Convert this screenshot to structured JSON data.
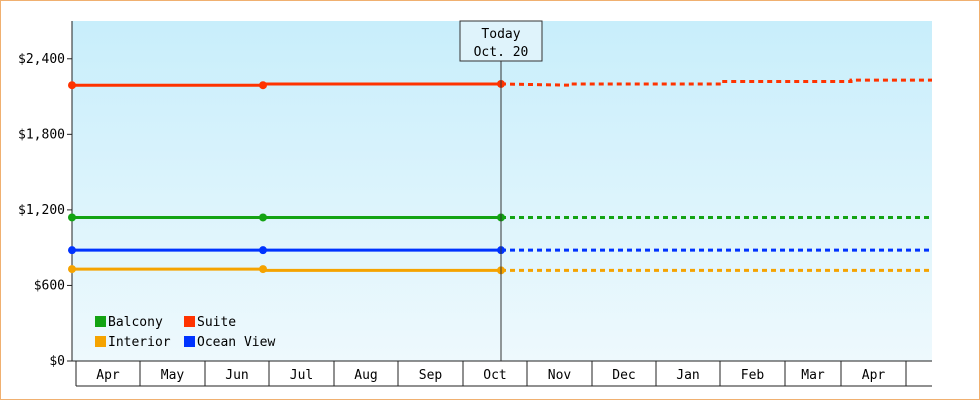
{
  "chart_data": {
    "type": "line",
    "title": "",
    "xlabel": "",
    "ylabel": "",
    "categories": [
      "Apr",
      "May",
      "Jun",
      "Jul",
      "Aug",
      "Sep",
      "Oct",
      "Nov",
      "Dec",
      "Jan",
      "Feb",
      "Mar",
      "Apr"
    ],
    "ylim": [
      0,
      2700
    ],
    "y_ticks": [
      0,
      600,
      1200,
      1800,
      2400
    ],
    "y_tick_labels": [
      "$0",
      "$600",
      "$1,200",
      "$1,800",
      "$2,400"
    ],
    "grid": false,
    "legend_position": "bottom-left",
    "today_marker": {
      "line1": "Today",
      "line2": "Oct. 20",
      "x": "Oct"
    },
    "series": [
      {
        "name": "Balcony",
        "color": "#13a313",
        "actual": [
          [
            "Apr",
            1140
          ],
          [
            "Jun",
            1140
          ],
          [
            "Oct",
            1140
          ]
        ],
        "forecast": [
          [
            "Oct",
            1140
          ],
          [
            "Apr",
            1140
          ]
        ]
      },
      {
        "name": "Suite",
        "color": "#ff3300",
        "actual": [
          [
            "Apr",
            2190
          ],
          [
            "Jun",
            2190
          ],
          [
            "Jun",
            2200
          ],
          [
            "Oct",
            2200
          ]
        ],
        "forecast": [
          [
            "Oct",
            2200
          ],
          [
            "Nov",
            2190
          ],
          [
            "Nov",
            2200
          ],
          [
            "Jan",
            2200
          ],
          [
            "Jan",
            2220
          ],
          [
            "Mar",
            2220
          ],
          [
            "Mar",
            2230
          ],
          [
            "Apr",
            2230
          ]
        ]
      },
      {
        "name": "Interior",
        "color": "#f5a300",
        "actual": [
          [
            "Apr",
            730
          ],
          [
            "Jun",
            730
          ],
          [
            "Jun",
            720
          ],
          [
            "Oct",
            720
          ]
        ],
        "forecast": [
          [
            "Oct",
            720
          ],
          [
            "Apr",
            720
          ]
        ]
      },
      {
        "name": "Ocean View",
        "color": "#0033ff",
        "actual": [
          [
            "Apr",
            880
          ],
          [
            "Jun",
            880
          ],
          [
            "Oct",
            880
          ]
        ],
        "forecast": [
          [
            "Oct",
            880
          ],
          [
            "Apr",
            880
          ]
        ]
      }
    ],
    "legend_order": [
      "Balcony",
      "Suite",
      "Interior",
      "Ocean View"
    ]
  }
}
